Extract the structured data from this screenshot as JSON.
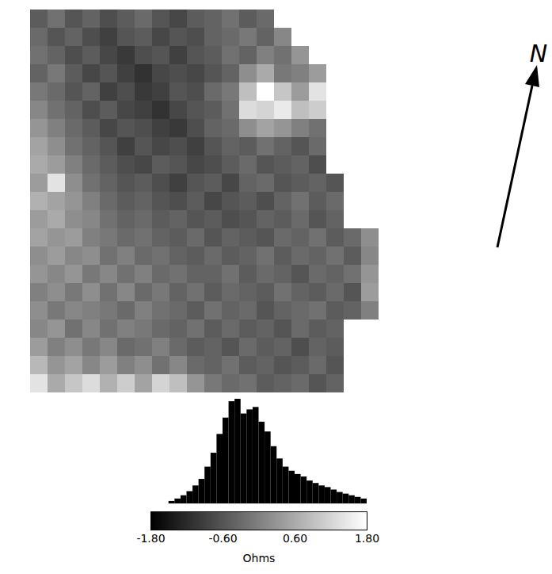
{
  "chart_data": {
    "type": "heatmap",
    "cells": [
      [
        -0.5,
        -0.2,
        -0.6,
        -0.4,
        -0.7,
        -0.5,
        -0.3,
        -0.6,
        -0.8,
        -0.5,
        -0.4,
        -0.2,
        -0.5,
        -0.3,
        null,
        null,
        null,
        null,
        null,
        null
      ],
      [
        -0.3,
        -0.6,
        -0.4,
        -0.7,
        -0.9,
        -0.6,
        -0.5,
        -0.8,
        -0.6,
        -0.7,
        -0.4,
        -0.3,
        -0.1,
        -0.4,
        0.1,
        null,
        null,
        null,
        null,
        null
      ],
      [
        -0.2,
        -0.4,
        -0.7,
        -0.5,
        -0.8,
        -1.0,
        -0.7,
        -0.6,
        -0.9,
        -0.6,
        -0.5,
        -0.2,
        -0.4,
        0.0,
        -0.2,
        0.3,
        null,
        null,
        null,
        null
      ],
      [
        -0.4,
        -0.1,
        -0.5,
        -0.8,
        -0.6,
        -0.9,
        -1.1,
        -0.8,
        -0.7,
        -0.8,
        -0.6,
        -0.4,
        0.2,
        0.6,
        -0.1,
        0.0,
        0.4,
        null,
        null,
        null
      ],
      [
        -0.1,
        -0.3,
        -0.6,
        -0.4,
        -0.9,
        -0.7,
        -1.0,
        -0.9,
        -0.6,
        -0.7,
        -0.3,
        -0.1,
        0.9,
        1.8,
        1.0,
        0.4,
        1.4,
        null,
        null,
        null
      ],
      [
        0.1,
        -0.2,
        -0.4,
        -0.7,
        -0.5,
        -0.8,
        -0.9,
        -1.1,
        -0.8,
        -0.6,
        -0.5,
        -0.2,
        1.3,
        1.2,
        1.5,
        0.9,
        1.1,
        null,
        null,
        null
      ],
      [
        0.3,
        0.0,
        -0.3,
        -0.5,
        -0.8,
        -0.6,
        -0.7,
        -0.9,
        -1.0,
        -0.7,
        -0.4,
        -0.3,
        0.2,
        0.5,
        0.3,
        0.0,
        -0.2,
        null,
        null,
        null
      ],
      [
        0.5,
        0.2,
        -0.2,
        -0.4,
        -0.6,
        -0.9,
        -0.6,
        -0.8,
        -0.7,
        -0.9,
        -0.6,
        -0.4,
        -0.5,
        -0.2,
        -0.4,
        -0.6,
        -0.3,
        null,
        null,
        null
      ],
      [
        0.6,
        0.4,
        0.0,
        -0.3,
        -0.5,
        -0.7,
        -0.8,
        -0.5,
        -0.6,
        -0.8,
        -0.7,
        -0.5,
        -0.3,
        -0.6,
        -0.5,
        -0.4,
        -0.7,
        null,
        null,
        null
      ],
      [
        0.4,
        1.4,
        0.2,
        -0.2,
        -0.4,
        -0.6,
        -0.5,
        -0.7,
        -0.9,
        -0.6,
        -0.5,
        -0.8,
        -0.4,
        -0.3,
        -0.6,
        -0.5,
        -0.4,
        -0.6,
        null,
        null
      ],
      [
        0.7,
        0.5,
        0.3,
        0.0,
        -0.3,
        -0.5,
        -0.4,
        -0.6,
        -0.7,
        -0.5,
        -0.8,
        -0.6,
        -0.5,
        -0.7,
        -0.4,
        -0.2,
        -0.5,
        -0.3,
        null,
        null
      ],
      [
        0.4,
        0.6,
        0.2,
        0.1,
        -0.2,
        -0.4,
        -0.3,
        -0.5,
        -0.4,
        -0.6,
        -0.5,
        -0.7,
        -0.6,
        -0.4,
        -0.5,
        -0.3,
        -0.6,
        -0.4,
        null,
        null
      ],
      [
        0.5,
        0.3,
        0.4,
        0.0,
        -0.1,
        -0.3,
        -0.2,
        -0.4,
        -0.5,
        -0.3,
        -0.6,
        -0.4,
        -0.5,
        -0.6,
        -0.3,
        -0.4,
        -0.2,
        -0.5,
        -0.3,
        0.2
      ],
      [
        0.2,
        0.4,
        0.1,
        0.2,
        -0.2,
        0.0,
        -0.3,
        -0.2,
        -0.4,
        -0.5,
        -0.3,
        -0.5,
        -0.4,
        -0.2,
        -0.5,
        -0.3,
        -0.4,
        -0.2,
        -0.5,
        0.1
      ],
      [
        0.3,
        0.1,
        0.3,
        -0.1,
        0.1,
        -0.2,
        0.0,
        -0.3,
        -0.2,
        -0.4,
        -0.4,
        -0.2,
        -0.5,
        -0.3,
        -0.4,
        -0.6,
        -0.3,
        -0.4,
        -0.2,
        0.3
      ],
      [
        0.0,
        0.2,
        -0.1,
        0.2,
        -0.2,
        0.1,
        -0.3,
        -0.1,
        -0.4,
        -0.2,
        -0.5,
        -0.3,
        -0.4,
        -0.5,
        -0.2,
        -0.4,
        -0.5,
        -0.3,
        -0.6,
        0.4
      ],
      [
        0.2,
        -0.1,
        0.1,
        0.0,
        -0.1,
        -0.3,
        0.0,
        -0.2,
        -0.3,
        -0.5,
        -0.2,
        -0.4,
        -0.3,
        -0.6,
        -0.4,
        -0.3,
        -0.2,
        -0.5,
        -0.4,
        0.0
      ],
      [
        0.1,
        0.3,
        -0.2,
        0.1,
        -0.2,
        0.0,
        -0.1,
        -0.3,
        -0.4,
        -0.2,
        -0.5,
        -0.3,
        -0.5,
        -0.4,
        -0.6,
        -0.3,
        -0.5,
        -0.4,
        null,
        null
      ],
      [
        0.4,
        0.0,
        0.2,
        -0.1,
        0.1,
        -0.3,
        -0.2,
        0.0,
        -0.3,
        -0.5,
        -0.4,
        -0.6,
        -0.3,
        -0.5,
        -0.4,
        -0.7,
        -0.4,
        -0.5,
        null,
        null
      ],
      [
        0.8,
        0.3,
        0.5,
        0.1,
        0.4,
        0.0,
        0.2,
        -0.2,
        0.1,
        -0.3,
        -0.4,
        -0.2,
        -0.5,
        -0.4,
        -0.6,
        -0.5,
        -0.3,
        -0.6,
        null,
        null
      ],
      [
        1.4,
        0.6,
        1.0,
        1.3,
        0.7,
        1.1,
        0.5,
        1.2,
        0.9,
        0.3,
        -0.1,
        -0.3,
        -0.2,
        -0.5,
        -0.4,
        -0.3,
        -0.6,
        -0.4,
        null,
        null
      ]
    ],
    "colorbar": {
      "range": [
        -1.8,
        1.8
      ],
      "ticks": [
        {
          "value": -1.8,
          "label": "-1.80"
        },
        {
          "value": -0.6,
          "label": "-0.60"
        },
        {
          "value": 0.6,
          "label": "0.60"
        },
        {
          "value": 1.8,
          "label": "1.80"
        }
      ],
      "label": "Ohms"
    },
    "histogram": {
      "color": "#000000",
      "bins": [
        -1.8,
        -1.7,
        -1.6,
        -1.5,
        -1.4,
        -1.3,
        -1.2,
        -1.1,
        -1.0,
        -0.9,
        -0.8,
        -0.7,
        -0.6,
        -0.5,
        -0.4,
        -0.3,
        -0.2,
        -0.1,
        0.0,
        0.1,
        0.2,
        0.3,
        0.4,
        0.5,
        0.6,
        0.7,
        0.8,
        0.9,
        1.0,
        1.1,
        1.2,
        1.3,
        1.4,
        1.5,
        1.6,
        1.7,
        1.8
      ],
      "counts": [
        0,
        0,
        0,
        3,
        6,
        10,
        15,
        22,
        30,
        45,
        62,
        85,
        105,
        125,
        128,
        110,
        115,
        118,
        100,
        88,
        70,
        55,
        45,
        40,
        36,
        33,
        28,
        25,
        22,
        20,
        17,
        14,
        12,
        10,
        8,
        6
      ]
    },
    "north_label": "N"
  }
}
